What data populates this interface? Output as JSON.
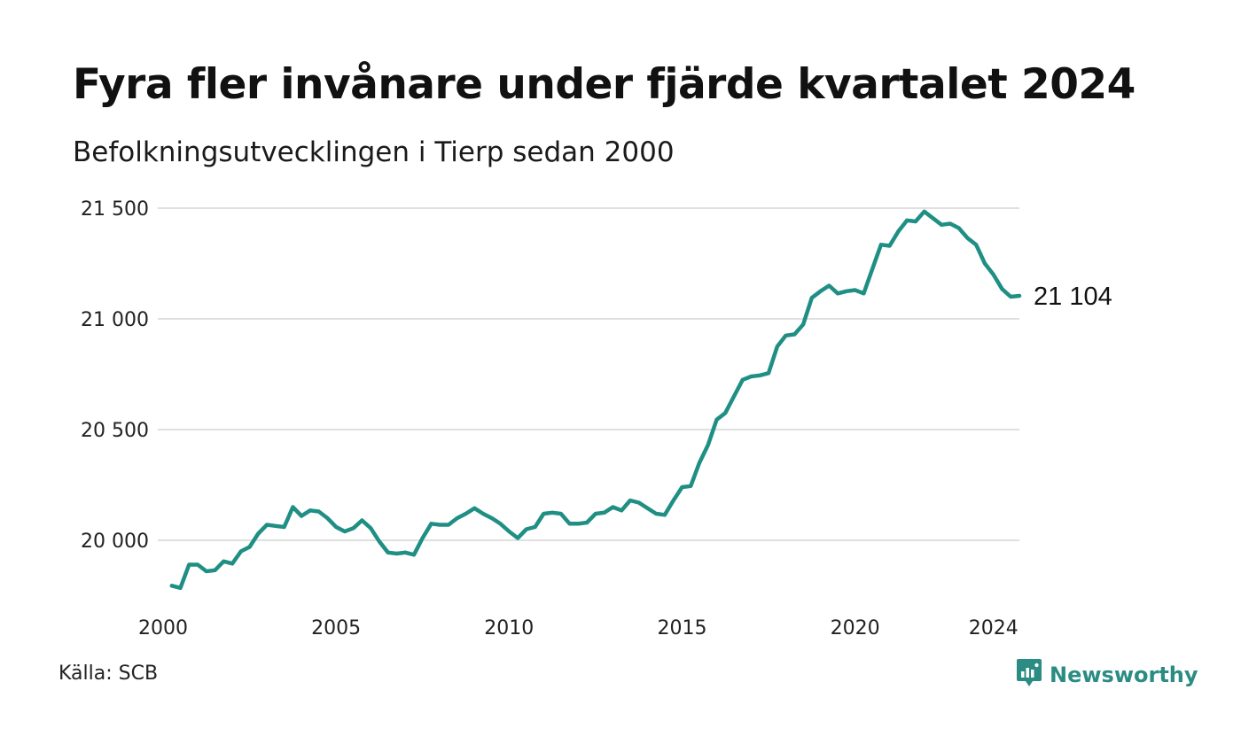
{
  "header": {
    "title": "Fyra fler invånare under fjärde kvartalet 2024",
    "subtitle": "Befolkningsutvecklingen i Tierp sedan 2000"
  },
  "footer": {
    "source": "Källa: SCB",
    "brand": "Newsworthy"
  },
  "colors": {
    "line": "#1f8f84",
    "grid": "#e0e0e0",
    "brand": "#2a8c83"
  },
  "chart_data": {
    "type": "line",
    "title": "Fyra fler invånare under fjärde kvartalet 2024",
    "subtitle": "Befolkningsutvecklingen i Tierp sedan 2000",
    "xlabel": "",
    "ylabel": "",
    "ylim": [
      19750,
      21500
    ],
    "xlim": [
      2000,
      2024.75
    ],
    "y_ticks": [
      20000,
      20500,
      21000,
      21500
    ],
    "y_tick_labels": [
      "20 000",
      "20 500",
      "21 000",
      "21 500"
    ],
    "x_ticks": [
      2000,
      2005,
      2010,
      2015,
      2020,
      2024
    ],
    "x_tick_labels": [
      "2000",
      "2005",
      "2010",
      "2015",
      "2020",
      "2024"
    ],
    "grid": "horizontal",
    "end_label": "21 104",
    "series": [
      {
        "x": [
          2000.25,
          2000.5,
          2000.75,
          2001.0,
          2001.25,
          2001.5,
          2001.75,
          2002.0,
          2002.25,
          2002.5,
          2002.75,
          2003.0,
          2003.25,
          2003.5,
          2003.75,
          2004.0,
          2004.25,
          2004.5,
          2004.75,
          2005.0,
          2005.25,
          2005.5,
          2005.75,
          2006.0,
          2006.25,
          2006.5,
          2006.75,
          2007.0,
          2007.25,
          2007.5,
          2007.75,
          2008.0,
          2008.25,
          2008.5,
          2008.75,
          2009.0,
          2009.25,
          2009.5,
          2009.75,
          2010.0,
          2010.25,
          2010.5,
          2010.75,
          2011.0,
          2011.25,
          2011.5,
          2011.75,
          2012.0,
          2012.25,
          2012.5,
          2012.75,
          2013.0,
          2013.25,
          2013.5,
          2013.75,
          2014.0,
          2014.25,
          2014.5,
          2014.75,
          2015.0,
          2015.25,
          2015.5,
          2015.75,
          2016.0,
          2016.25,
          2016.5,
          2016.75,
          2017.0,
          2017.25,
          2017.5,
          2017.75,
          2018.0,
          2018.25,
          2018.5,
          2018.75,
          2019.0,
          2019.25,
          2019.5,
          2019.75,
          2020.0,
          2020.25,
          2020.5,
          2020.75,
          2021.0,
          2021.25,
          2021.5,
          2021.75,
          2022.0,
          2022.25,
          2022.5,
          2022.75,
          2023.0,
          2023.25,
          2023.5,
          2023.75,
          2024.0,
          2024.25,
          2024.5,
          2024.75
        ],
        "values": [
          19795,
          19785,
          19890,
          19890,
          19860,
          19865,
          19905,
          19895,
          19950,
          19970,
          20030,
          20070,
          20065,
          20060,
          20150,
          20110,
          20135,
          20130,
          20100,
          20060,
          20040,
          20055,
          20090,
          20055,
          19995,
          19945,
          19940,
          19945,
          19935,
          20010,
          20075,
          20070,
          20070,
          20100,
          20120,
          20145,
          20120,
          20100,
          20075,
          20040,
          20010,
          20050,
          20060,
          20120,
          20125,
          20120,
          20075,
          20075,
          20080,
          20120,
          20125,
          20150,
          20135,
          20180,
          20170,
          20145,
          20120,
          20115,
          20180,
          20240,
          20245,
          20350,
          20430,
          20545,
          20575,
          20650,
          20725,
          20740,
          20745,
          20755,
          20875,
          20925,
          20930,
          20975,
          21095,
          21125,
          21150,
          21115,
          21125,
          21130,
          21115,
          21225,
          21335,
          21330,
          21395,
          21445,
          21440,
          21485,
          21455,
          21425,
          21430,
          21410,
          21365,
          21335,
          21250,
          21200,
          21135,
          21100,
          21104
        ]
      }
    ]
  }
}
